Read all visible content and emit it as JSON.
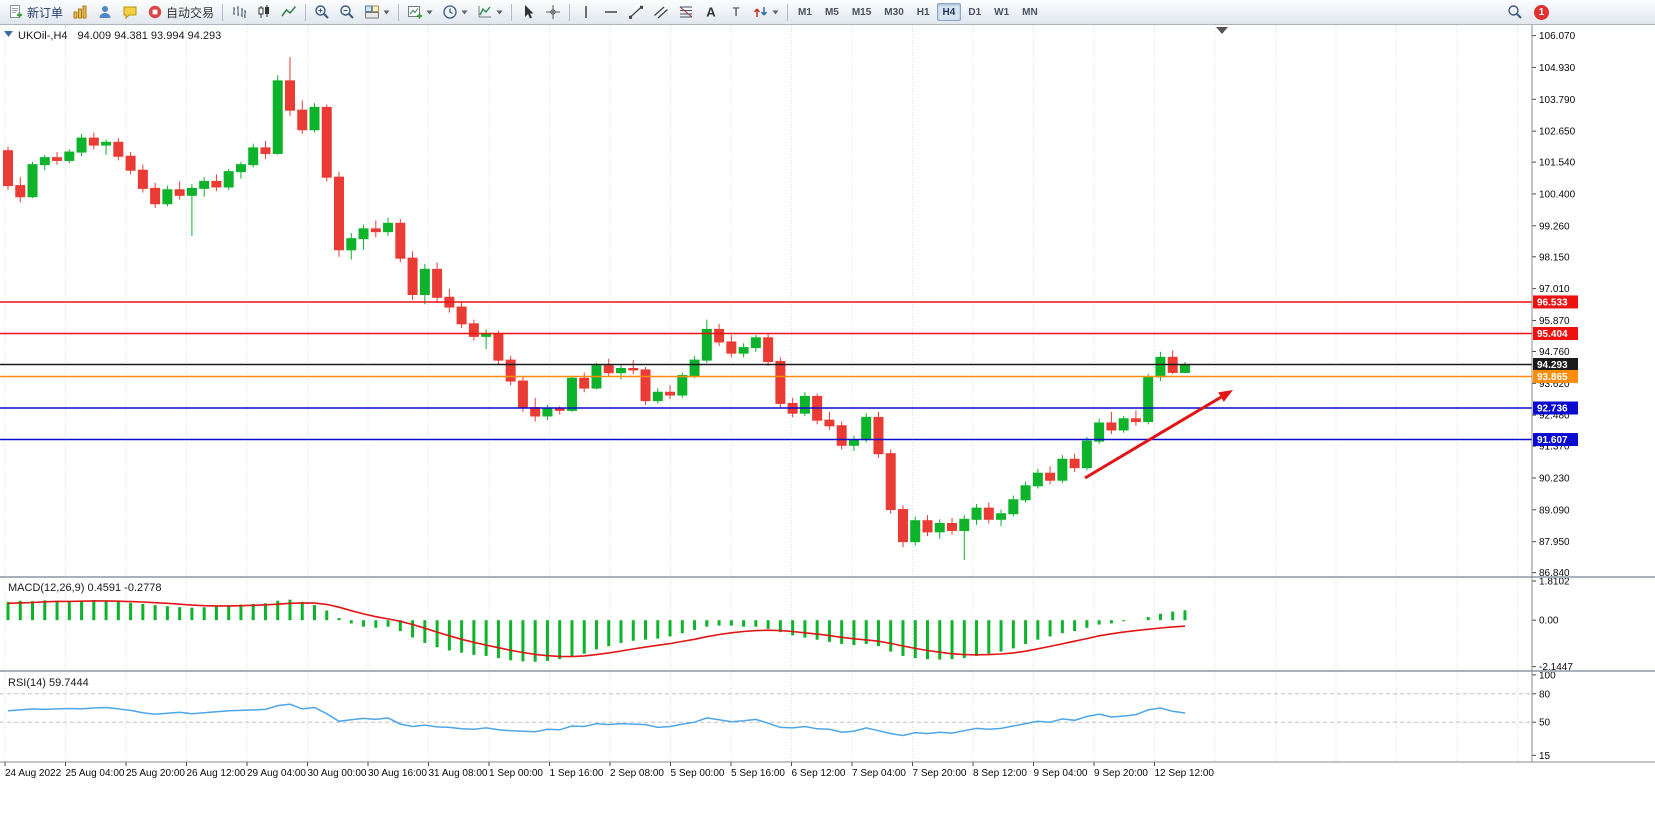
{
  "toolbar": {
    "new_order_label": "新订单",
    "autotrading_label": "自动交易",
    "text_tool_label": "A",
    "label_tool_label": "T",
    "timeframes": [
      "M1",
      "M5",
      "M15",
      "M30",
      "H1",
      "H4",
      "D1",
      "W1",
      "MN"
    ],
    "active_timeframe": "H4",
    "notification_count": "1"
  },
  "chart": {
    "title": "UKOil-,H4",
    "ohlc": "94.009 94.381 93.994 94.293",
    "price_axis": [
      "106.070",
      "104.930",
      "103.790",
      "102.650",
      "101.540",
      "100.400",
      "99.260",
      "98.150",
      "97.010",
      "95.870",
      "94.760",
      "93.620",
      "92.480",
      "91.370",
      "90.230",
      "89.090",
      "87.950",
      "86.840"
    ],
    "time_axis": [
      "24 Aug 2022",
      "25 Aug 04:00",
      "25 Aug 20:00",
      "26 Aug 12:00",
      "29 Aug 04:00",
      "30 Aug 00:00",
      "30 Aug 16:00",
      "31 Aug 08:00",
      "1 Sep 00:00",
      "1 Sep 16:00",
      "2 Sep 08:00",
      "5 Sep 00:00",
      "5 Sep 16:00",
      "6 Sep 12:00",
      "7 Sep 04:00",
      "7 Sep 20:00",
      "8 Sep 12:00",
      "9 Sep 04:00",
      "9 Sep 20:00",
      "12 Sep 12:00"
    ],
    "levels": [
      {
        "price": 96.533,
        "label": "96.533",
        "color": "#ee1111"
      },
      {
        "price": 95.404,
        "label": "95.404",
        "color": "#ee1111"
      },
      {
        "price": 94.293,
        "label": "94.293",
        "color": "#1a1a1a"
      },
      {
        "price": 93.865,
        "label": "93.865",
        "color": "#ff8d0a"
      },
      {
        "price": 92.736,
        "label": "92.736",
        "color": "#0a0ad0"
      },
      {
        "price": 91.607,
        "label": "91.607",
        "color": "#0a0ad0"
      }
    ],
    "colors": {
      "bull": "#0cb32b",
      "bear": "#ea3b34",
      "macd_hist": "#0cb32b",
      "macd_signal": "#e01515",
      "rsi": "#4da6e8",
      "annotation": "#e01515"
    }
  },
  "chart_data": {
    "type": "candlestick+indicators",
    "symbol": "UKOil-",
    "timeframe": "H4",
    "last_ohlc": {
      "open": 94.009,
      "high": 94.381,
      "low": 93.994,
      "close": 94.293
    },
    "price_range": [
      86.84,
      106.07
    ],
    "candles": [
      [
        101.95,
        102.1,
        100.55,
        100.7
      ],
      [
        100.7,
        101.0,
        100.1,
        100.3
      ],
      [
        100.3,
        101.55,
        100.25,
        101.45
      ],
      [
        101.45,
        101.8,
        101.25,
        101.7
      ],
      [
        101.7,
        101.9,
        101.45,
        101.6
      ],
      [
        101.6,
        102.0,
        101.5,
        101.9
      ],
      [
        101.9,
        102.55,
        101.75,
        102.4
      ],
      [
        102.4,
        102.6,
        102.0,
        102.15
      ],
      [
        102.15,
        102.35,
        101.8,
        102.25
      ],
      [
        102.25,
        102.4,
        101.6,
        101.75
      ],
      [
        101.75,
        101.9,
        101.1,
        101.25
      ],
      [
        101.25,
        101.45,
        100.45,
        100.6
      ],
      [
        100.6,
        100.8,
        99.9,
        100.05
      ],
      [
        100.05,
        100.7,
        99.95,
        100.55
      ],
      [
        100.55,
        100.85,
        100.2,
        100.35
      ],
      [
        100.35,
        100.75,
        98.9,
        100.6
      ],
      [
        100.6,
        101.0,
        100.3,
        100.85
      ],
      [
        100.85,
        101.1,
        100.5,
        100.65
      ],
      [
        100.65,
        101.3,
        100.55,
        101.2
      ],
      [
        101.2,
        101.55,
        100.95,
        101.45
      ],
      [
        101.45,
        102.2,
        101.35,
        102.05
      ],
      [
        102.05,
        102.3,
        101.65,
        101.85
      ],
      [
        101.85,
        104.65,
        101.8,
        104.45
      ],
      [
        104.45,
        105.3,
        103.2,
        103.4
      ],
      [
        103.4,
        103.75,
        102.55,
        102.7
      ],
      [
        102.7,
        103.65,
        102.6,
        103.5
      ],
      [
        103.5,
        103.6,
        100.85,
        101.0
      ],
      [
        101.0,
        101.2,
        98.15,
        98.4
      ],
      [
        98.4,
        99.0,
        98.05,
        98.8
      ],
      [
        98.8,
        99.3,
        98.4,
        99.15
      ],
      [
        99.15,
        99.45,
        98.85,
        99.05
      ],
      [
        99.05,
        99.55,
        98.9,
        99.35
      ],
      [
        99.35,
        99.5,
        97.95,
        98.1
      ],
      [
        98.1,
        98.35,
        96.6,
        96.8
      ],
      [
        96.8,
        97.9,
        96.45,
        97.7
      ],
      [
        97.7,
        97.95,
        96.5,
        96.7
      ],
      [
        96.7,
        97.0,
        96.15,
        96.35
      ],
      [
        96.35,
        96.55,
        95.6,
        95.75
      ],
      [
        95.75,
        95.9,
        95.15,
        95.3
      ],
      [
        95.3,
        95.55,
        94.85,
        95.4
      ],
      [
        95.4,
        95.5,
        94.3,
        94.45
      ],
      [
        94.45,
        94.6,
        93.55,
        93.7
      ],
      [
        93.7,
        93.85,
        92.6,
        92.75
      ],
      [
        92.75,
        93.1,
        92.25,
        92.45
      ],
      [
        92.45,
        92.85,
        92.3,
        92.7
      ],
      [
        92.7,
        92.8,
        92.5,
        92.65
      ],
      [
        92.65,
        93.9,
        92.6,
        93.8
      ],
      [
        93.8,
        94.0,
        93.3,
        93.45
      ],
      [
        93.45,
        94.35,
        93.4,
        94.25
      ],
      [
        94.25,
        94.5,
        93.85,
        94.0
      ],
      [
        94.0,
        94.3,
        93.75,
        94.15
      ],
      [
        94.15,
        94.45,
        93.95,
        94.1
      ],
      [
        94.1,
        94.2,
        92.85,
        93.0
      ],
      [
        93.0,
        93.45,
        92.9,
        93.3
      ],
      [
        93.3,
        93.55,
        93.05,
        93.2
      ],
      [
        93.2,
        94.0,
        93.1,
        93.9
      ],
      [
        93.9,
        94.6,
        93.8,
        94.45
      ],
      [
        94.45,
        95.9,
        94.35,
        95.55
      ],
      [
        95.55,
        95.75,
        94.95,
        95.1
      ],
      [
        95.1,
        95.35,
        94.55,
        94.7
      ],
      [
        94.7,
        95.05,
        94.55,
        94.9
      ],
      [
        94.9,
        95.35,
        94.75,
        95.25
      ],
      [
        95.25,
        95.4,
        94.25,
        94.4
      ],
      [
        94.4,
        94.55,
        92.75,
        92.9
      ],
      [
        92.9,
        93.1,
        92.4,
        92.55
      ],
      [
        92.55,
        93.3,
        92.45,
        93.15
      ],
      [
        93.15,
        93.25,
        92.15,
        92.3
      ],
      [
        92.3,
        92.6,
        91.95,
        92.1
      ],
      [
        92.1,
        92.25,
        91.25,
        91.4
      ],
      [
        91.4,
        91.75,
        91.2,
        91.6
      ],
      [
        91.6,
        92.55,
        91.5,
        92.4
      ],
      [
        92.4,
        92.6,
        90.95,
        91.1
      ],
      [
        91.1,
        91.25,
        88.95,
        89.1
      ],
      [
        89.1,
        89.25,
        87.75,
        87.95
      ],
      [
        87.95,
        88.85,
        87.8,
        88.7
      ],
      [
        88.7,
        88.9,
        88.15,
        88.3
      ],
      [
        88.3,
        88.75,
        88.05,
        88.6
      ],
      [
        88.6,
        88.8,
        88.2,
        88.35
      ],
      [
        88.35,
        88.9,
        87.3,
        88.75
      ],
      [
        88.75,
        89.3,
        88.55,
        89.15
      ],
      [
        89.15,
        89.35,
        88.6,
        88.75
      ],
      [
        88.75,
        89.1,
        88.5,
        88.95
      ],
      [
        88.95,
        89.6,
        88.85,
        89.45
      ],
      [
        89.45,
        90.1,
        89.35,
        89.95
      ],
      [
        89.95,
        90.55,
        89.85,
        90.4
      ],
      [
        90.4,
        90.65,
        90.0,
        90.15
      ],
      [
        90.15,
        91.05,
        90.05,
        90.9
      ],
      [
        90.9,
        91.1,
        90.45,
        90.6
      ],
      [
        90.6,
        91.7,
        90.5,
        91.55
      ],
      [
        91.55,
        92.35,
        91.45,
        92.2
      ],
      [
        92.2,
        92.6,
        91.8,
        91.95
      ],
      [
        91.95,
        92.45,
        91.85,
        92.35
      ],
      [
        92.35,
        92.65,
        92.1,
        92.25
      ],
      [
        92.25,
        93.95,
        92.15,
        93.85
      ],
      [
        93.85,
        94.75,
        93.7,
        94.55
      ],
      [
        94.55,
        94.8,
        93.95,
        94.009
      ],
      [
        94.009,
        94.381,
        93.994,
        94.293
      ]
    ],
    "macd": {
      "label": "MACD(12,26,9) 0.4591 -0.2778",
      "axis": [
        "1.8102",
        "0.00",
        "-2.1447"
      ],
      "range": [
        -2.3,
        1.95
      ],
      "hist": [
        0.85,
        0.9,
        0.88,
        0.92,
        0.9,
        0.87,
        0.9,
        0.93,
        0.9,
        0.85,
        0.8,
        0.75,
        0.7,
        0.65,
        0.6,
        0.58,
        0.6,
        0.65,
        0.7,
        0.72,
        0.75,
        0.78,
        0.9,
        0.95,
        0.85,
        0.7,
        0.45,
        0.1,
        -0.15,
        -0.3,
        -0.35,
        -0.3,
        -0.5,
        -0.8,
        -1.05,
        -1.25,
        -1.4,
        -1.5,
        -1.6,
        -1.65,
        -1.75,
        -1.85,
        -1.9,
        -1.92,
        -1.88,
        -1.8,
        -1.7,
        -1.55,
        -1.35,
        -1.2,
        -1.05,
        -0.95,
        -0.9,
        -0.85,
        -0.75,
        -0.6,
        -0.45,
        -0.3,
        -0.25,
        -0.25,
        -0.3,
        -0.3,
        -0.4,
        -0.55,
        -0.7,
        -0.8,
        -0.9,
        -1.0,
        -1.1,
        -1.15,
        -1.1,
        -1.2,
        -1.45,
        -1.65,
        -1.75,
        -1.8,
        -1.82,
        -1.8,
        -1.75,
        -1.65,
        -1.55,
        -1.45,
        -1.3,
        -1.1,
        -0.9,
        -0.75,
        -0.6,
        -0.5,
        -0.35,
        -0.2,
        -0.15,
        -0.05,
        0.0,
        0.15,
        0.3,
        0.4,
        0.4591
      ],
      "signal": [
        0.78,
        0.8,
        0.82,
        0.85,
        0.87,
        0.87,
        0.88,
        0.89,
        0.89,
        0.88,
        0.86,
        0.84,
        0.81,
        0.78,
        0.74,
        0.7,
        0.67,
        0.66,
        0.66,
        0.67,
        0.69,
        0.71,
        0.74,
        0.78,
        0.8,
        0.79,
        0.73,
        0.6,
        0.44,
        0.29,
        0.16,
        0.06,
        -0.05,
        -0.2,
        -0.37,
        -0.55,
        -0.72,
        -0.88,
        -1.02,
        -1.15,
        -1.27,
        -1.39,
        -1.49,
        -1.58,
        -1.64,
        -1.67,
        -1.68,
        -1.65,
        -1.59,
        -1.51,
        -1.42,
        -1.33,
        -1.24,
        -1.16,
        -1.08,
        -0.98,
        -0.88,
        -0.76,
        -0.66,
        -0.58,
        -0.52,
        -0.48,
        -0.46,
        -0.48,
        -0.52,
        -0.58,
        -0.64,
        -0.71,
        -0.79,
        -0.86,
        -0.91,
        -0.97,
        -1.07,
        -1.19,
        -1.3,
        -1.4,
        -1.48,
        -1.55,
        -1.59,
        -1.6,
        -1.59,
        -1.56,
        -1.51,
        -1.43,
        -1.32,
        -1.21,
        -1.09,
        -0.97,
        -0.85,
        -0.72,
        -0.63,
        -0.55,
        -0.48,
        -0.42,
        -0.36,
        -0.31,
        -0.2778
      ]
    },
    "rsi": {
      "label": "RSI(14) 59.7444",
      "axis": [
        "100",
        "80",
        "50",
        "15"
      ],
      "range": [
        8,
        103
      ],
      "levels": [
        80,
        50
      ],
      "values": [
        62,
        63,
        64,
        63.5,
        64,
        64.5,
        64,
        65,
        65.5,
        64,
        62.5,
        60,
        58.5,
        59.5,
        60.5,
        59,
        60,
        61,
        62,
        62.5,
        63,
        63.5,
        67.5,
        69,
        64,
        65.5,
        59,
        51,
        52.5,
        54,
        53,
        54.5,
        48,
        45.5,
        47,
        45,
        44.5,
        43,
        42.5,
        44,
        42,
        41,
        40.5,
        40,
        42.5,
        42,
        46,
        45.5,
        48.5,
        47.5,
        48.5,
        48,
        47.5,
        44.5,
        45.5,
        48,
        50,
        54.5,
        52.5,
        50.5,
        51.5,
        53,
        49,
        44.5,
        44,
        45.5,
        43,
        42.5,
        39.5,
        40.5,
        44,
        41,
        38,
        36,
        39,
        38,
        39.5,
        38.5,
        41,
        43.5,
        42.5,
        43.5,
        46,
        48.5,
        51,
        50,
        53.5,
        52,
        56,
        58.5,
        55.5,
        56.5,
        58,
        63,
        65,
        61.5,
        59.7444
      ]
    },
    "annotations": [
      {
        "type": "arrow",
        "from": [
          1085,
          453
        ],
        "to": [
          1233,
          365
        ],
        "color": "#e01515"
      }
    ]
  }
}
